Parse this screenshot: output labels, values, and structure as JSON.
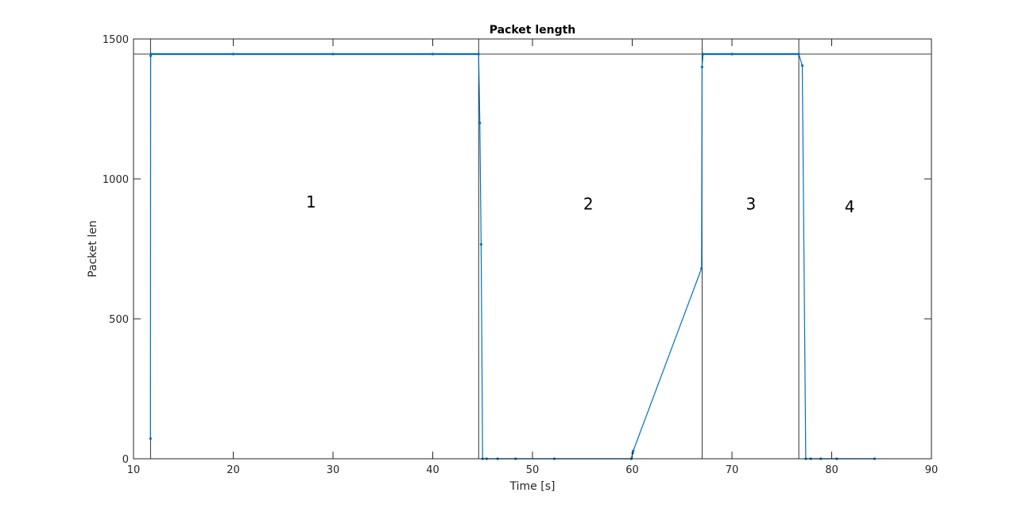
{
  "chart_data": {
    "type": "line",
    "title": "Packet length",
    "xlabel": "Time [s]",
    "ylabel": "Packet len",
    "xlim": [
      10,
      90
    ],
    "ylim": [
      0,
      1500
    ],
    "xticks": [
      10,
      20,
      30,
      40,
      50,
      60,
      70,
      80,
      90
    ],
    "yticks": [
      0,
      500,
      1000,
      1500
    ],
    "grid": false,
    "series": [
      {
        "color": "#0072BD",
        "x": [
          11.7,
          11.72,
          11.75,
          20,
          30,
          40,
          44.6,
          44.72,
          44.85,
          45.0,
          45.4,
          46.5,
          48.3,
          52.2,
          59.9,
          60.05,
          60.1,
          66.95,
          67.0,
          67.1,
          70,
          76.7,
          77.05,
          77.4,
          77.9,
          78.9,
          80.5,
          84.3
        ],
        "y": [
          72,
          1440,
          1446,
          1446,
          1446,
          1446,
          1446,
          1200,
          766,
          0,
          0,
          0,
          0,
          0,
          0,
          20,
          28,
          680,
          1400,
          1446,
          1446,
          1446,
          1405,
          0,
          0,
          0,
          0,
          0
        ]
      }
    ],
    "reference_lines": {
      "horizontal": [
        1446
      ],
      "vertical": [
        11.7,
        44.6,
        67.0,
        76.7
      ]
    },
    "annotations": [
      {
        "text": "1",
        "x": 27.8,
        "y": 918
      },
      {
        "text": "2",
        "x": 55.6,
        "y": 910
      },
      {
        "text": "3",
        "x": 71.9,
        "y": 910
      },
      {
        "text": "4",
        "x": 81.8,
        "y": 901
      }
    ]
  }
}
